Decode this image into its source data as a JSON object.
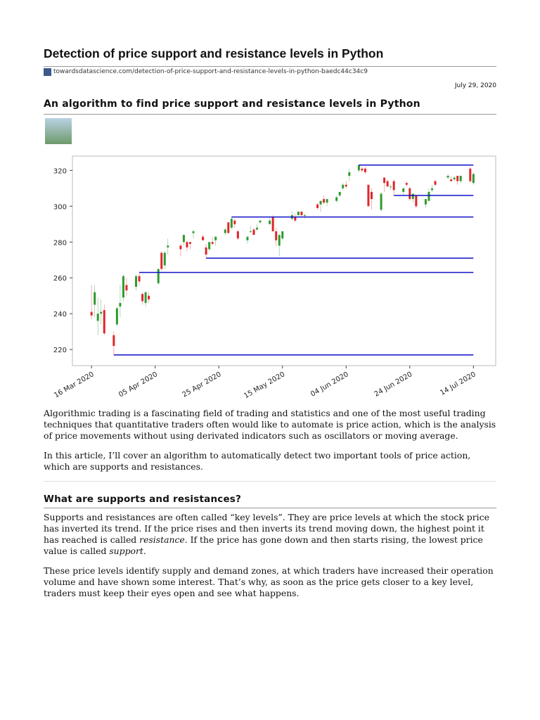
{
  "header": {
    "title": "Detection of price support and resistance levels in Python",
    "url": "towardsdatascience.com/detection-of-price-support-and-resistance-levels-in-python-baedc44c34c9",
    "date": "July 29, 2020"
  },
  "article": {
    "subtitle": "An algorithm to find price support and resistance levels in Python",
    "paragraphs": [
      "Algorithmic trading is a fascinating field of trading and statistics and one of the most useful trading techniques that quantitative traders often would like to automate is price action, which is the analysis of price movements without using derivated indicators such as oscillators or moving average.",
      "In this article, I’ll cover an algorithm to automatically detect two important tools of price action, which are supports and resistances."
    ],
    "heading": "What are supports and resistances?",
    "section_paragraphs": [
      [
        "Supports and resistances are often called “key levels”. They are price levels at which the stock price has inverted its trend. If the price rises and then inverts its trend moving down, the highest point it has reached is called ",
        "resistance",
        ". If the price has gone down and then starts rising, the lowest price value is called ",
        "support",
        "."
      ],
      [
        "These price levels identify supply and demand zones, at which traders have increased their operation volume and have shown some interest. That’s why, as soon as the price gets closer to a key level, traders must keep their eyes open and see what happens."
      ]
    ]
  },
  "chart_data": {
    "type": "candlestick",
    "x": [
      "2020-03-16",
      "2020-03-17",
      "2020-03-18",
      "2020-03-19",
      "2020-03-20",
      "2020-03-23",
      "2020-03-24",
      "2020-03-25",
      "2020-03-26",
      "2020-03-27",
      "2020-03-30",
      "2020-03-31",
      "2020-04-01",
      "2020-04-02",
      "2020-04-03",
      "2020-04-06",
      "2020-04-07",
      "2020-04-08",
      "2020-04-09",
      "2020-04-13",
      "2020-04-14",
      "2020-04-15",
      "2020-04-16",
      "2020-04-17",
      "2020-04-20",
      "2020-04-21",
      "2020-04-22",
      "2020-04-23",
      "2020-04-24",
      "2020-04-27",
      "2020-04-28",
      "2020-04-29",
      "2020-04-30",
      "2020-05-01",
      "2020-05-04",
      "2020-05-05",
      "2020-05-06",
      "2020-05-07",
      "2020-05-08",
      "2020-05-11",
      "2020-05-12",
      "2020-05-13",
      "2020-05-14",
      "2020-05-15",
      "2020-05-18",
      "2020-05-19",
      "2020-05-20",
      "2020-05-21",
      "2020-05-22",
      "2020-05-26",
      "2020-05-27",
      "2020-05-28",
      "2020-05-29",
      "2020-06-01",
      "2020-06-02",
      "2020-06-03",
      "2020-06-04",
      "2020-06-05",
      "2020-06-08",
      "2020-06-09",
      "2020-06-10",
      "2020-06-11",
      "2020-06-12",
      "2020-06-15",
      "2020-06-16",
      "2020-06-17",
      "2020-06-18",
      "2020-06-19",
      "2020-06-22",
      "2020-06-23",
      "2020-06-24",
      "2020-06-25",
      "2020-06-26",
      "2020-06-29",
      "2020-06-30",
      "2020-07-01",
      "2020-07-02",
      "2020-07-06",
      "2020-07-07",
      "2020-07-08",
      "2020-07-09",
      "2020-07-10",
      "2020-07-13",
      "2020-07-14"
    ],
    "open": [
      241,
      245,
      236,
      240,
      242,
      228,
      234,
      244,
      249,
      256,
      255,
      261,
      251,
      246,
      250,
      257,
      274,
      267,
      277,
      278,
      280,
      280,
      280,
      285,
      283,
      277,
      276,
      280,
      281,
      285,
      291,
      288,
      292,
      286,
      281,
      286,
      287,
      287,
      291,
      290,
      294,
      286,
      278,
      282,
      293,
      294,
      295,
      297,
      295,
      301,
      301,
      304,
      302,
      303,
      306,
      310,
      312,
      317,
      320,
      321,
      321,
      312,
      308,
      298,
      316,
      314,
      311,
      314,
      308,
      313,
      310,
      304,
      306,
      301,
      303,
      309,
      314,
      316,
      315,
      315,
      317,
      314,
      321,
      313
    ],
    "high": [
      256,
      256,
      249,
      248,
      245,
      230,
      244,
      256,
      262,
      260,
      262,
      263,
      252,
      252,
      252,
      265,
      275,
      275,
      282,
      279,
      284,
      281,
      280,
      287,
      284,
      279,
      280,
      283,
      283,
      288,
      291,
      294,
      293,
      287,
      283,
      289,
      288,
      290,
      292,
      294,
      295,
      288,
      284,
      286,
      297,
      296,
      297,
      297,
      296,
      302,
      303,
      306,
      304,
      306,
      308,
      313,
      314,
      321,
      323,
      322,
      322,
      312,
      310,
      308,
      316,
      315,
      312,
      315,
      310,
      314,
      311,
      307,
      306,
      304,
      310,
      312,
      315,
      318,
      317,
      317,
      317,
      317,
      322,
      319
    ],
    "low": [
      237,
      238,
      228,
      234,
      228,
      217,
      233,
      238,
      247,
      250,
      253,
      256,
      245,
      244,
      246,
      256,
      264,
      265,
      273,
      272,
      278,
      275,
      276,
      282,
      281,
      271,
      275,
      278,
      278,
      284,
      285,
      287,
      288,
      281,
      279,
      285,
      284,
      286,
      290,
      290,
      286,
      278,
      272,
      281,
      292,
      291,
      295,
      294,
      293,
      298,
      297,
      301,
      300,
      302,
      305,
      309,
      310,
      314,
      319,
      319,
      318,
      300,
      298,
      297,
      308,
      311,
      309,
      306,
      306,
      311,
      303,
      302,
      299,
      299,
      303,
      308,
      311,
      315,
      314,
      314,
      312,
      313,
      313,
      312
    ],
    "close": [
      239,
      252,
      240,
      241,
      229,
      222,
      243,
      246,
      261,
      253,
      261,
      258,
      247,
      252,
      248,
      265,
      265,
      274,
      278,
      276,
      284,
      277,
      279,
      286,
      281,
      273,
      280,
      279,
      283,
      287,
      285,
      293,
      290,
      282,
      283,
      286,
      284,
      288,
      292,
      292,
      286,
      281,
      284,
      286,
      295,
      292,
      297,
      295,
      295,
      299,
      303,
      302,
      304,
      305,
      308,
      312,
      311,
      319,
      323,
      320,
      319,
      300,
      304,
      307,
      313,
      311,
      311,
      309,
      310,
      312,
      304,
      307,
      300,
      304,
      308,
      310,
      312,
      317,
      314,
      316,
      314,
      317,
      314,
      318
    ],
    "up_color": "#2e9a2e",
    "down_color": "#e0262b",
    "levels": [
      {
        "start": "2020-03-23",
        "value": 217
      },
      {
        "start": "2020-03-31",
        "value": 263
      },
      {
        "start": "2020-04-21",
        "value": 271
      },
      {
        "start": "2020-04-29",
        "value": 294
      },
      {
        "start": "2020-06-08",
        "value": 323
      },
      {
        "start": "2020-06-19",
        "value": 306
      }
    ],
    "level_color": "#1010c8",
    "xlim": [
      "2020-03-10",
      "2020-07-21"
    ],
    "xticks": [
      {
        "value": "2020-03-16",
        "label": "16 Mar 2020"
      },
      {
        "value": "2020-04-05",
        "label": "05 Apr 2020"
      },
      {
        "value": "2020-04-25",
        "label": "25 Apr 2020"
      },
      {
        "value": "2020-05-15",
        "label": "15 May 2020"
      },
      {
        "value": "2020-06-04",
        "label": "04 Jun 2020"
      },
      {
        "value": "2020-06-24",
        "label": "24 Jun 2020"
      },
      {
        "value": "2020-07-14",
        "label": "14 Jul 2020"
      }
    ],
    "ylim": [
      211,
      328
    ],
    "yticks": [
      220,
      240,
      260,
      280,
      300,
      320
    ]
  }
}
